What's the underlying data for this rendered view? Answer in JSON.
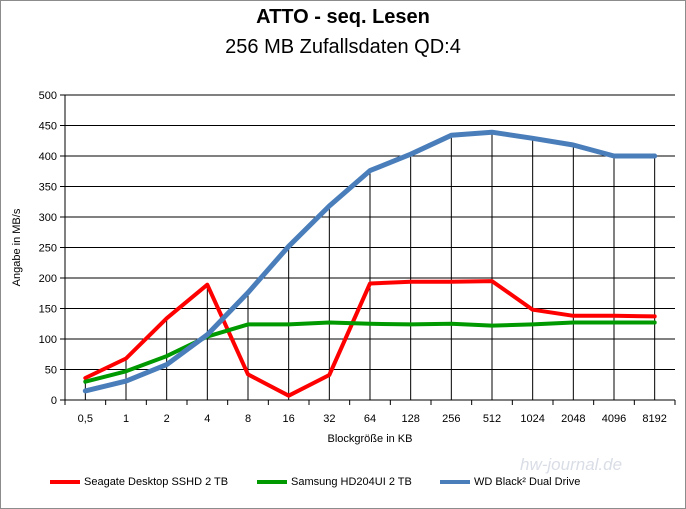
{
  "chart_data": {
    "type": "line",
    "title": "ATTO - seq. Lesen",
    "subtitle": "256 MB Zufallsdaten QD:4",
    "xlabel": "Blockgröße in KB",
    "ylabel": "Angabe in MB/s",
    "ylim": [
      0,
      500
    ],
    "yticks": [
      "0",
      "50",
      "100",
      "150",
      "200",
      "250",
      "300",
      "350",
      "400",
      "450",
      "500"
    ],
    "categories": [
      "0,5",
      "1",
      "2",
      "4",
      "8",
      "16",
      "32",
      "64",
      "128",
      "256",
      "512",
      "1024",
      "2048",
      "4096",
      "8192"
    ],
    "legend_position": "bottom",
    "series": [
      {
        "name": "Seagate Desktop SSHD 2 TB",
        "color": "#ff0000",
        "values": [
          36,
          68,
          134,
          189,
          42,
          7,
          41,
          191,
          194,
          194,
          195,
          148,
          138,
          138,
          137
        ]
      },
      {
        "name": "Samsung HD204UI 2 TB",
        "color": "#009900",
        "values": [
          30,
          47,
          72,
          104,
          124,
          124,
          127,
          125,
          124,
          125,
          122,
          124,
          127,
          127,
          127
        ]
      },
      {
        "name": "WD Black² Dual Drive",
        "color": "#4a7ebb",
        "values": [
          15,
          31,
          58,
          107,
          176,
          252,
          318,
          376,
          403,
          434,
          439,
          429,
          418,
          400,
          400
        ]
      }
    ]
  },
  "watermark": "hw-journal.de"
}
